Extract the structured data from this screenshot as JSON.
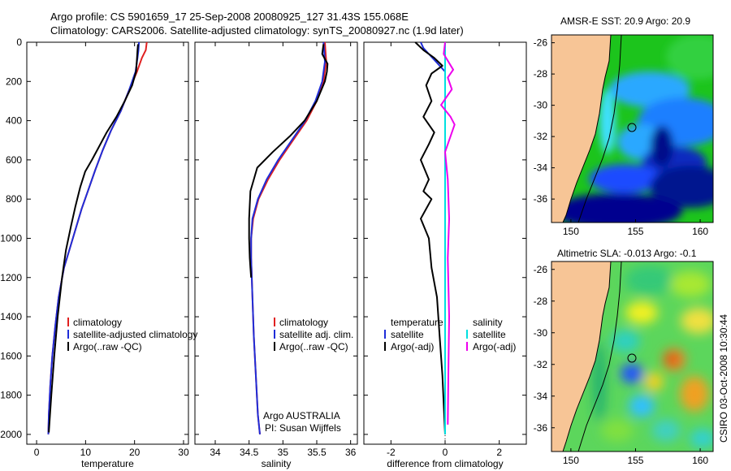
{
  "title_line1": "Argo profile: CS 5901659_17 25-Sep-2008 20080925_127 31.43S 155.068E",
  "title_line2": "Climatology: CARS2006. Satellite-adjusted climatology: synTS_20080927.nc (1.9d later)",
  "footer_text": "CSIRO 03-Oct-2008 10:30:44",
  "colors": {
    "red": "#e02020",
    "blue": "#1f2dd8",
    "black": "#000000",
    "cyan": "#00e0e0",
    "magenta": "#ee00ee",
    "land": "#f7c596",
    "ocean_deep": "#00008f"
  },
  "chart_data": [
    {
      "type": "line",
      "id": "temperature",
      "xlabel": "temperature",
      "ylabel": "",
      "xlim": [
        -2,
        31
      ],
      "ylim": [
        2050,
        0
      ],
      "xticks": [
        0,
        10,
        20,
        30
      ],
      "yticks": [
        0,
        200,
        400,
        600,
        800,
        1000,
        1200,
        1400,
        1600,
        1800,
        2000
      ],
      "legend": [
        "climatology",
        "satellite-adjusted climatology",
        "Argo(..raw -QC)"
      ],
      "series": [
        {
          "name": "climatology",
          "color": "red",
          "x": [
            22.5,
            22.3,
            21.5,
            20.5,
            18.8,
            17.2,
            15.2,
            13.5,
            12.0,
            10.6,
            9.2,
            8.0,
            6.8,
            5.6,
            4.5,
            3.8,
            3.2,
            2.8,
            2.5,
            2.4
          ],
          "y": [
            0,
            40,
            80,
            150,
            250,
            350,
            450,
            550,
            650,
            750,
            850,
            950,
            1050,
            1150,
            1300,
            1450,
            1600,
            1750,
            1900,
            2000
          ]
        },
        {
          "name": "satellite-adjusted climatology",
          "color": "blue",
          "x": [
            20.9,
            20.8,
            20.6,
            20.2,
            18.8,
            17.2,
            15.2,
            13.5,
            12.0,
            10.6,
            9.2,
            8.0,
            6.8,
            5.6,
            4.5,
            3.8,
            3.2,
            2.8,
            2.5,
            2.4
          ],
          "y": [
            0,
            40,
            80,
            150,
            250,
            350,
            450,
            550,
            650,
            750,
            850,
            950,
            1050,
            1150,
            1300,
            1450,
            1600,
            1750,
            1900,
            2000
          ]
        },
        {
          "name": "Argo(..raw -QC)",
          "color": "black",
          "x": [
            20.7,
            20.6,
            20.5,
            20.3,
            19.5,
            18.0,
            16.3,
            14.3,
            12.6,
            11.3,
            9.9,
            8.9,
            7.9,
            7.0,
            6.0,
            5.2,
            4.3,
            3.6,
            3.0,
            2.5
          ],
          "y": [
            10,
            40,
            80,
            150,
            220,
            300,
            380,
            460,
            540,
            600,
            660,
            740,
            840,
            940,
            1060,
            1200,
            1400,
            1600,
            1800,
            1990
          ]
        }
      ]
    },
    {
      "type": "line",
      "id": "salinity",
      "xlabel": "salinity",
      "ylabel": "",
      "xlim": [
        33.7,
        36.1
      ],
      "ylim": [
        2050,
        0
      ],
      "xticks": [
        34,
        34.5,
        35,
        35.5,
        36
      ],
      "legend": [
        "climatology",
        "satellite adj. clim.",
        "Argo(..raw -QC)"
      ],
      "annotation": [
        "Argo AUSTRALIA",
        "PI: Susan Wijffels"
      ],
      "series": [
        {
          "name": "climatology",
          "color": "red",
          "x": [
            35.62,
            35.63,
            35.64,
            35.6,
            35.5,
            35.35,
            35.15,
            34.95,
            34.78,
            34.64,
            34.56,
            34.53,
            34.53,
            34.55,
            34.57,
            34.6,
            34.63,
            34.66
          ],
          "y": [
            0,
            50,
            100,
            200,
            300,
            400,
            500,
            600,
            700,
            800,
            900,
            1000,
            1100,
            1300,
            1500,
            1700,
            1900,
            2000
          ]
        },
        {
          "name": "satellite adj. clim.",
          "color": "blue",
          "x": [
            35.6,
            35.61,
            35.62,
            35.58,
            35.48,
            35.33,
            35.13,
            34.93,
            34.76,
            34.63,
            34.55,
            34.53,
            34.53,
            34.55,
            34.57,
            34.6,
            34.63,
            34.66
          ],
          "y": [
            0,
            50,
            100,
            200,
            300,
            400,
            500,
            600,
            700,
            800,
            900,
            1000,
            1100,
            1300,
            1500,
            1700,
            1900,
            2000
          ]
        },
        {
          "name": "Argo(..raw -QC)",
          "color": "black",
          "x": [
            35.6,
            35.58,
            35.66,
            35.65,
            35.62,
            35.5,
            35.32,
            35.1,
            34.85,
            34.62,
            34.52,
            34.5,
            34.5,
            34.51,
            34.52,
            34.53
          ],
          "y": [
            10,
            60,
            110,
            150,
            200,
            300,
            400,
            480,
            560,
            640,
            760,
            900,
            1000,
            1100,
            1150,
            1200
          ]
        }
      ]
    },
    {
      "type": "line",
      "id": "difference",
      "xlabel": "difference from climatology",
      "ylabel": "",
      "xlim": [
        -3,
        3
      ],
      "ylim": [
        2050,
        0
      ],
      "xticks": [
        -2,
        0,
        2
      ],
      "legend": [
        "temperature",
        "satellite",
        "Argo(-adj)",
        "salinity",
        "satellite",
        "Argo(-adj)"
      ],
      "series": [
        {
          "name": "temperature satellite",
          "color": "blue",
          "x": [
            -0.9,
            -0.8,
            -0.6,
            -0.4,
            -0.2,
            0,
            0,
            0,
            0
          ],
          "y": [
            0,
            30,
            60,
            90,
            120,
            150,
            500,
            1500,
            2000
          ]
        },
        {
          "name": "temperature Argo(-adj)",
          "color": "black",
          "x": [
            -1.1,
            -0.8,
            -0.4,
            -0.1,
            -0.5,
            -0.7,
            -0.5,
            -0.8,
            -0.4,
            -0.6,
            -0.9,
            -0.6,
            -0.8,
            -0.5,
            -0.9,
            -0.6,
            -0.5,
            -0.3,
            -0.2,
            -0.1,
            0
          ],
          "y": [
            0,
            40,
            80,
            120,
            160,
            220,
            300,
            380,
            460,
            520,
            600,
            700,
            760,
            800,
            900,
            1000,
            1150,
            1300,
            1500,
            1700,
            2000
          ]
        },
        {
          "name": "salinity satellite",
          "color": "cyan",
          "x": [
            0,
            0,
            0,
            0
          ],
          "y": [
            0,
            500,
            1500,
            2000
          ]
        },
        {
          "name": "salinity Argo(-adj)",
          "color": "magenta",
          "x": [
            0,
            -0.05,
            0.3,
            0.1,
            0.25,
            0.05,
            -0.15,
            0.2,
            0.35,
            0.15,
            0.0,
            0.1,
            0.15,
            0.1,
            0.15,
            0.12,
            0.1
          ],
          "y": [
            0,
            60,
            140,
            180,
            240,
            280,
            320,
            380,
            420,
            500,
            560,
            700,
            900,
            1100,
            1400,
            1700,
            1950
          ]
        }
      ]
    },
    {
      "type": "heatmap",
      "id": "sst_map",
      "title": "AMSR-E SST: 20.9 Argo: 20.9",
      "xlim": [
        148.5,
        161
      ],
      "ylim": [
        -37.5,
        -25.5
      ],
      "xticks": [
        150,
        155,
        160
      ],
      "yticks": [
        -26,
        -28,
        -30,
        -32,
        -34,
        -36
      ],
      "marker": {
        "lon": 155.068,
        "lat": -31.43
      }
    },
    {
      "type": "heatmap",
      "id": "sla_map",
      "title": "Altimetric SLA: -0.013 Argo: -0.1",
      "xlim": [
        148.5,
        161
      ],
      "ylim": [
        -37.5,
        -25.5
      ],
      "xticks": [
        150,
        155,
        160
      ],
      "yticks": [
        -26,
        -28,
        -30,
        -32,
        -34,
        -36
      ],
      "marker": {
        "lon": 155.068,
        "lat": -31.43
      }
    }
  ]
}
